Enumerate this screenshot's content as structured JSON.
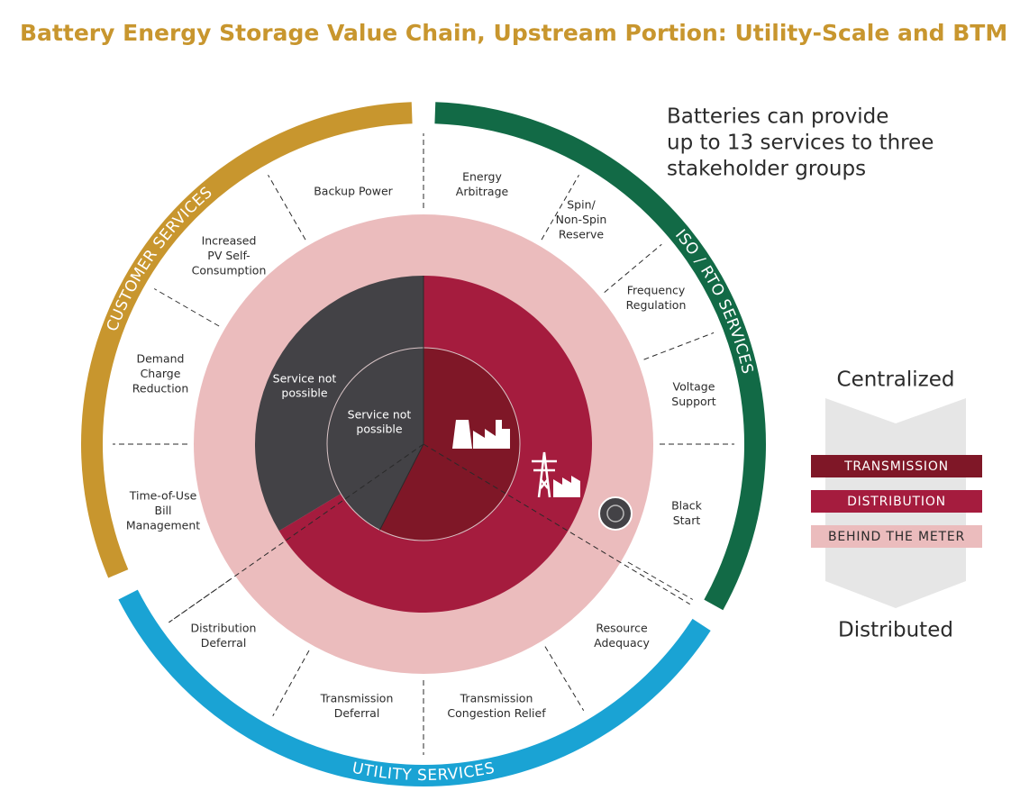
{
  "title": "Battery Energy Storage Value Chain, Upstream Portion: Utility-Scale and BTM",
  "note": [
    "Batteries can provide",
    "up to 13 services to three",
    "stakeholder groups"
  ],
  "groups": [
    "CUSTOMER SERVICES",
    "ISO / RTO SERVICES",
    "UTILITY SERVICES"
  ],
  "services": [
    [
      "Energy",
      "Arbitrage"
    ],
    [
      "Spin/",
      "Non-Spin",
      "Reserve"
    ],
    [
      "Frequency",
      "Regulation"
    ],
    [
      "Voltage",
      "Support"
    ],
    [
      "Black",
      "Start"
    ],
    [
      "Resource",
      "Adequacy"
    ],
    [
      "Transmission",
      "Congestion Relief"
    ],
    [
      "Transmission",
      "Deferral"
    ],
    [
      "Distribution",
      "Deferral"
    ],
    [
      "Time-of-Use",
      "Bill",
      "Management"
    ],
    [
      "Demand",
      "Charge",
      "Reduction"
    ],
    [
      "Increased",
      "PV Self-",
      "Consumption"
    ],
    [
      "Backup Power"
    ]
  ],
  "inner_labels": [
    [
      "Service not",
      "possible"
    ],
    [
      "Service not",
      "possible"
    ]
  ],
  "legend": {
    "top": "Centralized",
    "items": [
      "TRANSMISSION",
      "DISTRIBUTION",
      "BEHIND THE METER"
    ],
    "bottom": "Distributed"
  }
}
